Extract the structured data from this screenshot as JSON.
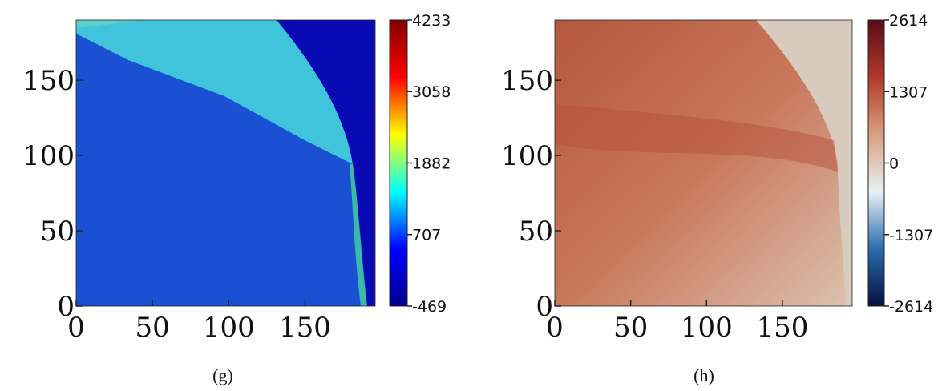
{
  "chart_data": [
    {
      "type": "heatmap",
      "caption": "(g)",
      "xlim": [
        0,
        196
      ],
      "ylim": [
        0,
        190
      ],
      "xticks": [
        0,
        50,
        100,
        150
      ],
      "yticks": [
        0,
        50,
        100,
        150
      ],
      "colorbar": {
        "clim": [
          -469,
          4233
        ],
        "ticks": [
          -469,
          707,
          1882,
          3058,
          4233
        ],
        "colors": [
          "#00008f",
          "#0000ff",
          "#00ffff",
          "#ffff00",
          "#ff0000",
          "#800000"
        ]
      }
    },
    {
      "type": "heatmap",
      "caption": "(h)",
      "xlim": [
        0,
        196
      ],
      "ylim": [
        0,
        190
      ],
      "xticks": [
        0,
        50,
        100,
        150
      ],
      "yticks": [
        0,
        50,
        100,
        150
      ],
      "colorbar": {
        "clim": [
          -2614,
          2614
        ],
        "ticks": [
          -2614,
          -1307,
          0,
          1307,
          2614
        ],
        "colors": [
          "#05103f",
          "#2a6cae",
          "#e8f2f5",
          "#d8a080",
          "#b03a2a",
          "#5a0a18"
        ]
      }
    }
  ]
}
